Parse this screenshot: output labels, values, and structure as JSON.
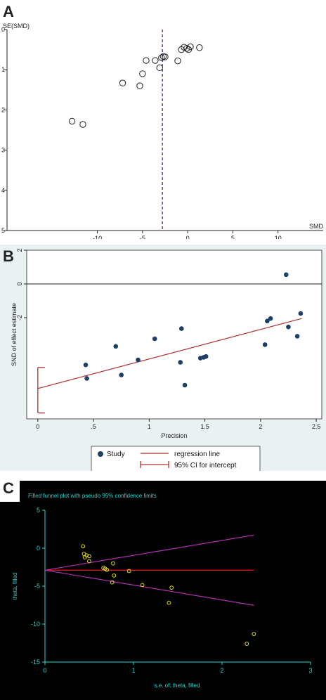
{
  "chart_data": [
    {
      "panel": "A",
      "type": "scatter",
      "title": "",
      "xlabel": "SMD",
      "ylabel": "SE(SMD)",
      "xlim": [
        -20,
        15
      ],
      "ylim": [
        0,
        5
      ],
      "y_inverted": true,
      "x_ticks": [
        "-10",
        "-5",
        "0",
        "5",
        "10"
      ],
      "y_ticks": [
        "0",
        "1",
        "2",
        "3",
        "4",
        "5"
      ],
      "grid": false,
      "reference_line_x": -2.8,
      "reference_line_color": "#2b2bd6",
      "points": [
        {
          "x": -12.8,
          "y": 2.28
        },
        {
          "x": -11.6,
          "y": 2.36
        },
        {
          "x": -7.2,
          "y": 1.33
        },
        {
          "x": -5.3,
          "y": 1.4
        },
        {
          "x": -5.0,
          "y": 1.1
        },
        {
          "x": -4.6,
          "y": 0.77
        },
        {
          "x": -3.6,
          "y": 0.77
        },
        {
          "x": -3.1,
          "y": 0.95
        },
        {
          "x": -2.9,
          "y": 0.7
        },
        {
          "x": -2.7,
          "y": 0.67
        },
        {
          "x": -2.5,
          "y": 0.68
        },
        {
          "x": -1.1,
          "y": 0.78
        },
        {
          "x": -0.7,
          "y": 0.5
        },
        {
          "x": -0.4,
          "y": 0.44
        },
        {
          "x": -0.1,
          "y": 0.47
        },
        {
          "x": 0.1,
          "y": 0.5
        },
        {
          "x": 0.3,
          "y": 0.43
        },
        {
          "x": 1.3,
          "y": 0.45
        }
      ]
    },
    {
      "panel": "B",
      "type": "scatter",
      "title": "",
      "xlabel": "Precision",
      "ylabel": "SND of effect estimate",
      "xlim": [
        -0.1,
        2.55
      ],
      "ylim": [
        -8.0,
        2.0
      ],
      "x_ticks": [
        "0",
        ".5",
        "1",
        "1.5",
        "2",
        "2.5"
      ],
      "y_ticks": [
        "2",
        "0",
        "-2"
      ],
      "grid": false,
      "background": "#eaf1f3",
      "zero_line": 0,
      "regression_line": {
        "x": [
          0,
          2.37
        ],
        "y": [
          -6.2,
          -2.05
        ]
      },
      "ci_intercept": {
        "x": 0,
        "low": -7.65,
        "high": -4.95
      },
      "legend": [
        "Study",
        "regression line",
        "95% CI for intercept"
      ],
      "legend_position": "bottom",
      "points": [
        {
          "x": 0.43,
          "y": -4.8
        },
        {
          "x": 0.44,
          "y": -5.6
        },
        {
          "x": 0.7,
          "y": -3.7
        },
        {
          "x": 0.75,
          "y": -5.4
        },
        {
          "x": 0.9,
          "y": -4.5
        },
        {
          "x": 1.05,
          "y": -3.25
        },
        {
          "x": 1.28,
          "y": -4.65
        },
        {
          "x": 1.29,
          "y": -2.65
        },
        {
          "x": 1.32,
          "y": -6.0
        },
        {
          "x": 1.46,
          "y": -4.4
        },
        {
          "x": 1.49,
          "y": -4.35
        },
        {
          "x": 1.51,
          "y": -4.3
        },
        {
          "x": 2.04,
          "y": -3.6
        },
        {
          "x": 2.06,
          "y": -2.2
        },
        {
          "x": 2.09,
          "y": -2.05
        },
        {
          "x": 2.23,
          "y": 0.55
        },
        {
          "x": 2.25,
          "y": -2.55
        },
        {
          "x": 2.33,
          "y": -3.1
        },
        {
          "x": 2.36,
          "y": -1.75
        }
      ]
    },
    {
      "panel": "C",
      "type": "scatter",
      "title": "Filled funnel plot with pseudo 95% confidence limits",
      "xlabel": "s.e. of: theta, filled",
      "ylabel": "theta, filled",
      "xlim": [
        0,
        3
      ],
      "ylim": [
        -15,
        5
      ],
      "x_ticks": [
        "0",
        "1",
        "2",
        "3"
      ],
      "y_ticks": [
        "5",
        "0",
        "-5",
        "-10",
        "-15"
      ],
      "grid": false,
      "background": "#000000",
      "pooled_estimate": -2.9,
      "pseudo_ci": {
        "slope_factor": 1.96
      },
      "points": [
        {
          "x": 0.43,
          "y": 0.25
        },
        {
          "x": 0.44,
          "y": -0.75
        },
        {
          "x": 0.45,
          "y": -1.2
        },
        {
          "x": 0.47,
          "y": -0.95
        },
        {
          "x": 0.5,
          "y": -1.05
        },
        {
          "x": 0.5,
          "y": -1.7
        },
        {
          "x": 0.66,
          "y": -2.6
        },
        {
          "x": 0.68,
          "y": -2.7
        },
        {
          "x": 0.7,
          "y": -2.85
        },
        {
          "x": 0.76,
          "y": -4.5
        },
        {
          "x": 0.77,
          "y": -2.0
        },
        {
          "x": 0.78,
          "y": -3.6
        },
        {
          "x": 0.95,
          "y": -3.0
        },
        {
          "x": 1.1,
          "y": -4.85
        },
        {
          "x": 1.4,
          "y": -7.2
        },
        {
          "x": 1.43,
          "y": -5.2
        },
        {
          "x": 2.28,
          "y": -12.6
        },
        {
          "x": 2.36,
          "y": -11.3
        }
      ]
    }
  ],
  "panel_labels": {
    "a": "A",
    "b": "B",
    "c": "C"
  },
  "colors": {
    "funnel_line_a": "#2b2bd6",
    "panel_b_bg": "#eaf1f3",
    "panel_b_points": "#1c3f63",
    "panel_b_line": "#b03030",
    "panel_c_bg": "#000000",
    "panel_c_points": "#e6e010",
    "panel_c_pooled": "#d01a1a",
    "panel_c_ci": "#b02fb0",
    "panel_c_text": "#2ed6cf"
  }
}
